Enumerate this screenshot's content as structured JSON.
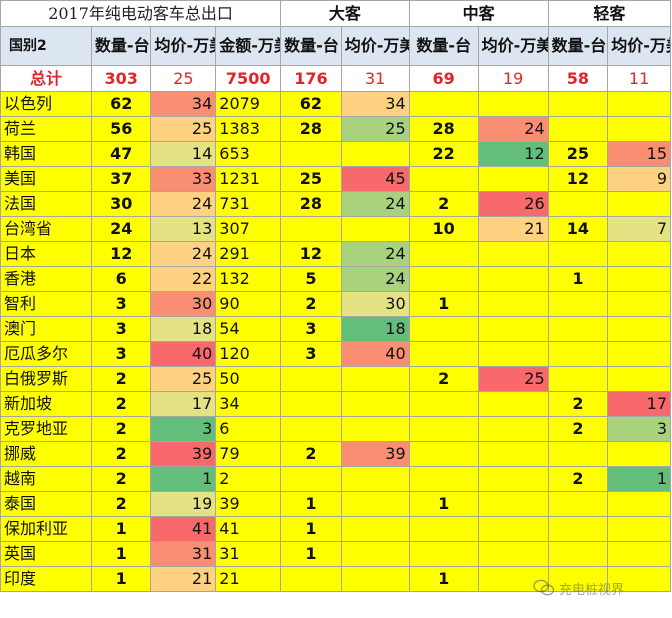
{
  "title": "2017年纯电动客车总出口",
  "groups": {
    "large": "大客",
    "medium": "中客",
    "light": "轻客"
  },
  "headers": {
    "country": "国别2",
    "qty": "数量-台",
    "avg": "均价-万美元",
    "amount": "金额-万美元"
  },
  "totals": {
    "label": "总计",
    "qty": "303",
    "avg": "25",
    "amount": "7500",
    "large_qty": "176",
    "large_avg": "31",
    "medium_qty": "69",
    "medium_avg": "19",
    "light_qty": "58",
    "light_avg": "11"
  },
  "rows": [
    {
      "country": "以色列",
      "qty": "62",
      "avg": "34",
      "amount": "2079",
      "lq": "62",
      "la": "34",
      "mq": "",
      "ma": "",
      "sq": "",
      "sa": ""
    },
    {
      "country": "荷兰",
      "qty": "56",
      "avg": "25",
      "amount": "1383",
      "lq": "28",
      "la": "25",
      "mq": "28",
      "ma": "24",
      "sq": "",
      "sa": ""
    },
    {
      "country": "韩国",
      "qty": "47",
      "avg": "14",
      "amount": "653",
      "lq": "",
      "la": "",
      "mq": "22",
      "ma": "12",
      "sq": "25",
      "sa": "15"
    },
    {
      "country": "美国",
      "qty": "37",
      "avg": "33",
      "amount": "1231",
      "lq": "25",
      "la": "45",
      "mq": "",
      "ma": "",
      "sq": "12",
      "sa": "9"
    },
    {
      "country": "法国",
      "qty": "30",
      "avg": "24",
      "amount": "731",
      "lq": "28",
      "la": "24",
      "mq": "2",
      "ma": "26",
      "sq": "",
      "sa": ""
    },
    {
      "country": "台湾省",
      "qty": "24",
      "avg": "13",
      "amount": "307",
      "lq": "",
      "la": "",
      "mq": "10",
      "ma": "21",
      "sq": "14",
      "sa": "7"
    },
    {
      "country": "日本",
      "qty": "12",
      "avg": "24",
      "amount": "291",
      "lq": "12",
      "la": "24",
      "mq": "",
      "ma": "",
      "sq": "",
      "sa": ""
    },
    {
      "country": "香港",
      "qty": "6",
      "avg": "22",
      "amount": "132",
      "lq": "5",
      "la": "24",
      "mq": "",
      "ma": "",
      "sq": "1",
      "sa": ""
    },
    {
      "country": "智利",
      "qty": "3",
      "avg": "30",
      "amount": "90",
      "lq": "2",
      "la": "30",
      "mq": "1",
      "ma": "",
      "sq": "",
      "sa": ""
    },
    {
      "country": "澳门",
      "qty": "3",
      "avg": "18",
      "amount": "54",
      "lq": "3",
      "la": "18",
      "mq": "",
      "ma": "",
      "sq": "",
      "sa": ""
    },
    {
      "country": "厄瓜多尔",
      "qty": "3",
      "avg": "40",
      "amount": "120",
      "lq": "3",
      "la": "40",
      "mq": "",
      "ma": "",
      "sq": "",
      "sa": ""
    },
    {
      "country": "白俄罗斯",
      "qty": "2",
      "avg": "25",
      "amount": "50",
      "lq": "",
      "la": "",
      "mq": "2",
      "ma": "25",
      "sq": "",
      "sa": ""
    },
    {
      "country": "新加坡",
      "qty": "2",
      "avg": "17",
      "amount": "34",
      "lq": "",
      "la": "",
      "mq": "",
      "ma": "",
      "sq": "2",
      "sa": "17"
    },
    {
      "country": "克罗地亚",
      "qty": "2",
      "avg": "3",
      "amount": "6",
      "lq": "",
      "la": "",
      "mq": "",
      "ma": "",
      "sq": "2",
      "sa": "3"
    },
    {
      "country": "挪威",
      "qty": "2",
      "avg": "39",
      "amount": "79",
      "lq": "2",
      "la": "39",
      "mq": "",
      "ma": "",
      "sq": "",
      "sa": ""
    },
    {
      "country": "越南",
      "qty": "2",
      "avg": "1",
      "amount": "2",
      "lq": "",
      "la": "",
      "mq": "",
      "ma": "",
      "sq": "2",
      "sa": "1"
    },
    {
      "country": "泰国",
      "qty": "2",
      "avg": "19",
      "amount": "39",
      "lq": "1",
      "la": "",
      "mq": "1",
      "ma": "",
      "sq": "",
      "sa": ""
    },
    {
      "country": "保加利亚",
      "qty": "1",
      "avg": "41",
      "amount": "41",
      "lq": "1",
      "la": "",
      "mq": "",
      "ma": "",
      "sq": "",
      "sa": ""
    },
    {
      "country": "英国",
      "qty": "1",
      "avg": "31",
      "amount": "31",
      "lq": "1",
      "la": "",
      "mq": "",
      "ma": "",
      "sq": "",
      "sa": ""
    },
    {
      "country": "印度",
      "qty": "1",
      "avg": "21",
      "amount": "21",
      "lq": "",
      "la": "",
      "mq": "1",
      "ma": "",
      "sq": "",
      "sa": ""
    }
  ],
  "heat_colors": {
    "scale": [
      "#63be7b",
      "#a9d27f",
      "#e4e383",
      "#fed280",
      "#fa8e72",
      "#f8696b"
    ],
    "note_source": "conditional formatting colour scale on average-price columns",
    "base": "#ffff00"
  },
  "watermark": {
    "text": "充电桩视界",
    "icon": "wechat-icon"
  }
}
